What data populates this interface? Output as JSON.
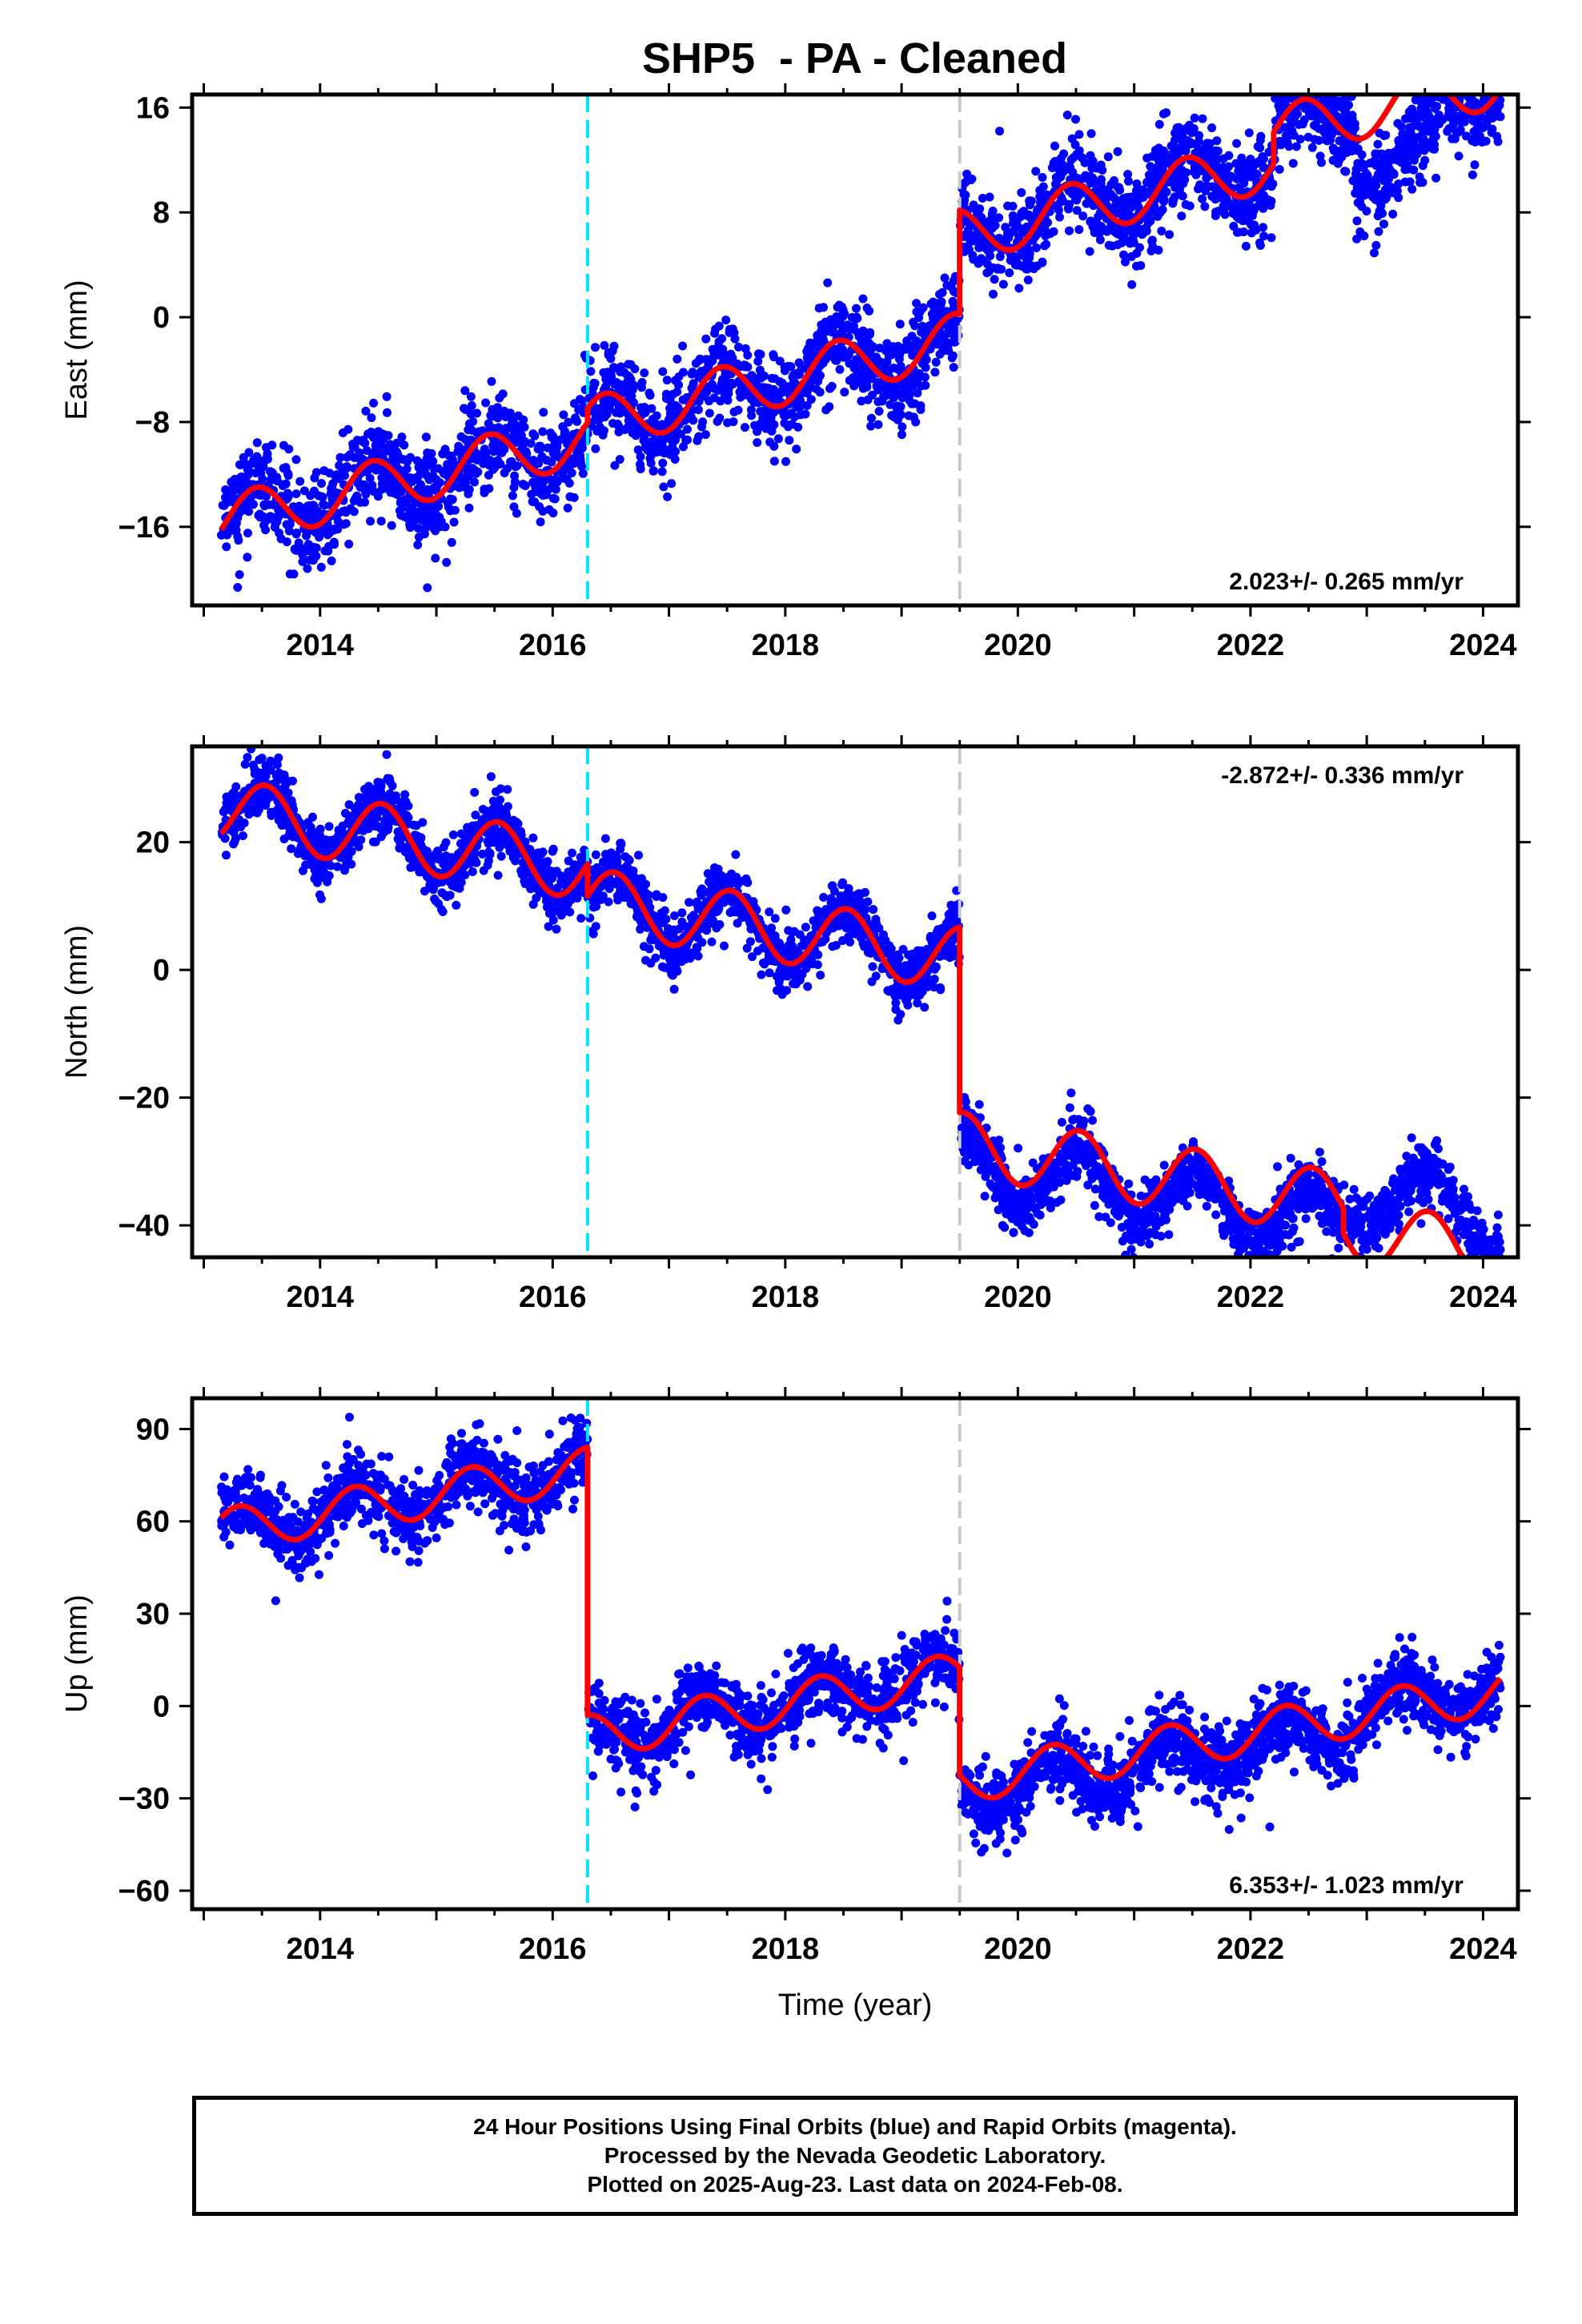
{
  "title": "SHP5  - PA - Cleaned",
  "footer": {
    "lines": [
      "24 Hour Positions Using Final Orbits (blue) and Rapid Orbits (magenta).",
      "Processed by the Nevada Geodetic Laboratory.",
      "Plotted on 2025-Aug-23. Last data on 2024-Feb-08."
    ]
  },
  "colors": {
    "data_points": "#0000ff",
    "model": "#ff0000",
    "antenna_change": "#00e5ff",
    "offset": "#c8c8c8"
  },
  "chart_data": [
    {
      "type": "scatter",
      "ylabel": "East (mm)",
      "xlabel": "",
      "xlim": [
        2012.9,
        2024.3
      ],
      "ylim": [
        -22,
        17
      ],
      "xticks": [
        "2014",
        "2016",
        "2018",
        "2020",
        "2022",
        "2024"
      ],
      "yticks": [
        "16",
        "8",
        "0",
        "-8",
        "-16"
      ],
      "ytick_values": [
        16,
        8,
        0,
        -8,
        -16
      ],
      "rate_label": "2.023+/- 0.265 mm/yr",
      "rate_position": "bottom-right",
      "vlines": [
        2016.3,
        2019.5
      ],
      "model": {
        "rate": 2.023,
        "annual_amp": 2.0,
        "phase": 0.2,
        "segments": [
          {
            "start": 2013.15,
            "end": 2016.3,
            "offset": -15.6
          },
          {
            "start": 2016.3,
            "end": 2019.5,
            "offset": -14.5
          },
          {
            "start": 2019.5,
            "end": 2022.2,
            "offset": -6.6
          },
          {
            "start": 2022.2,
            "end": 2024.15,
            "offset": -4.2
          }
        ]
      },
      "scatter": {
        "count": 3600,
        "noise": 1.3,
        "seg_extra": [
          0.0,
          0.0,
          0.0,
          0.0
        ],
        "extra_anomaly": {
          "start": 2022.9,
          "end": 2023.6,
          "shift": -5.0
        }
      }
    },
    {
      "type": "scatter",
      "ylabel": "North (mm)",
      "xlabel": "",
      "xlim": [
        2012.9,
        2024.3
      ],
      "ylim": [
        -45,
        35
      ],
      "xticks": [
        "2014",
        "2016",
        "2018",
        "2020",
        "2022",
        "2024"
      ],
      "yticks": [
        "20",
        "0",
        "-20",
        "-40"
      ],
      "ytick_values": [
        20,
        0,
        -20,
        -40
      ],
      "rate_label": "-2.872+/- 0.336 mm/yr",
      "rate_position": "top-right",
      "vlines": [
        2016.3,
        2019.5
      ],
      "model": {
        "rate": -2.872,
        "annual_amp": 5.0,
        "phase": 0.28,
        "segments": [
          {
            "start": 2013.15,
            "end": 2016.3,
            "offset": 25.0
          },
          {
            "start": 2016.3,
            "end": 2019.5,
            "offset": 20.0
          },
          {
            "start": 2019.5,
            "end": 2022.8,
            "offset": -9.0
          },
          {
            "start": 2022.8,
            "end": 2024.15,
            "offset": -13.0
          }
        ]
      },
      "scatter": {
        "count": 3600,
        "noise": 1.8,
        "seg_extra": [
          0.0,
          0.0,
          -3.0,
          0.0
        ],
        "extra_anomaly": {
          "start": 2022.8,
          "end": 2024.15,
          "shift": 7.0
        }
      }
    },
    {
      "type": "scatter",
      "ylabel": "Up (mm)",
      "xlabel": "Time (year)",
      "xlim": [
        2012.9,
        2024.3
      ],
      "ylim": [
        -66,
        100
      ],
      "xticks": [
        "2014",
        "2016",
        "2018",
        "2020",
        "2022",
        "2024"
      ],
      "yticks": [
        "90",
        "60",
        "30",
        "0",
        "-30",
        "-60"
      ],
      "ytick_values": [
        90,
        60,
        30,
        0,
        -30,
        -60
      ],
      "rate_label": "6.353+/- 1.023 mm/yr",
      "rate_position": "bottom-right",
      "vlines": [
        2016.3,
        2019.5
      ],
      "model": {
        "rate": 6.353,
        "annual_amp": 7.0,
        "phase": 0.05,
        "segments": [
          {
            "start": 2013.15,
            "end": 2016.3,
            "offset": 57.0
          },
          {
            "start": 2016.3,
            "end": 2019.5,
            "offset": -30.0
          },
          {
            "start": 2019.5,
            "end": 2024.15,
            "offset": -65.0
          }
        ]
      },
      "scatter": {
        "count": 3400,
        "noise": 4.5,
        "seg_extra": [
          0.0,
          0.0,
          -4.0
        ],
        "extra_anomaly": {
          "start": 2022.8,
          "end": 2024.15,
          "shift": 5.0
        }
      }
    }
  ]
}
